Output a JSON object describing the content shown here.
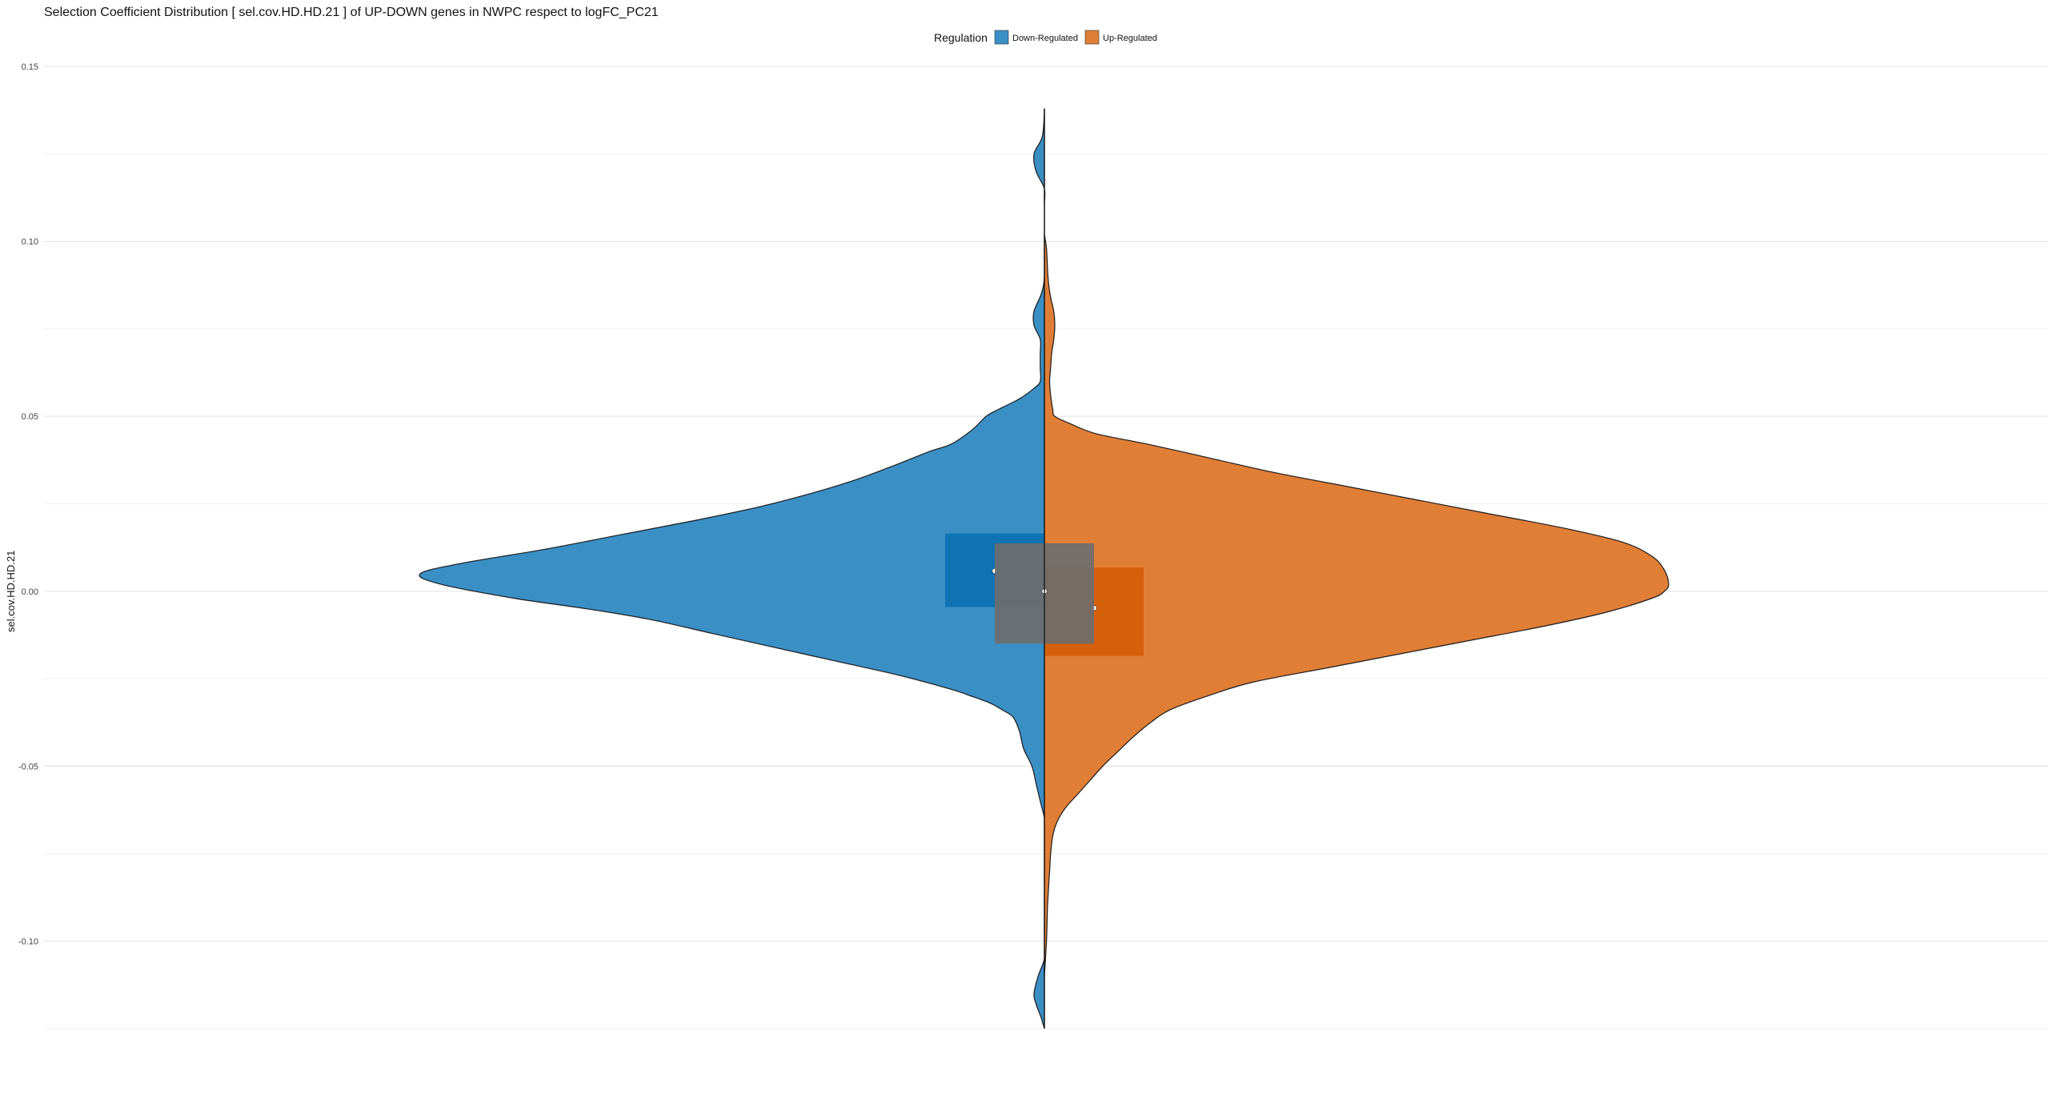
{
  "chart_data": {
    "type": "split-violin",
    "title": "Selection Coefficient Distribution [ sel.cov.HD.HD.21 ] of UP-DOWN genes in  NWPC  respect to  logFC_PC21",
    "xlabel": "",
    "ylabel": "sel.cov.HD.HD.21",
    "ylim": [
      -0.125,
      0.152
    ],
    "yticks": [
      0.15,
      0.1,
      0.05,
      0.0,
      -0.05,
      -0.1
    ],
    "ytick_labels": [
      "0.15",
      "0.10",
      "0.05",
      "0.00",
      "-0.05",
      "-0.10"
    ],
    "grid": true,
    "legend": {
      "title": "Regulation",
      "position": "top",
      "entries": [
        {
          "name": "Down-Regulated",
          "color": "#3a8fc5"
        },
        {
          "name": "Up-Regulated",
          "color": "#e07e36"
        }
      ]
    },
    "series": [
      {
        "name": "Down-Regulated",
        "side": "left",
        "color": "#3a8fc5",
        "density": {
          "y": [
            0.138,
            0.13,
            0.125,
            0.12,
            0.115,
            0.11,
            0.1,
            0.09,
            0.085,
            0.08,
            0.076,
            0.072,
            0.068,
            0.064,
            0.06,
            0.058,
            0.055,
            0.052,
            0.05,
            0.046,
            0.042,
            0.04,
            0.036,
            0.032,
            0.028,
            0.024,
            0.02,
            0.016,
            0.012,
            0.008,
            0.005,
            0.002,
            -0.002,
            -0.005,
            -0.008,
            -0.012,
            -0.016,
            -0.02,
            -0.024,
            -0.028,
            -0.03,
            -0.032,
            -0.034,
            -0.036,
            -0.04,
            -0.045,
            -0.05,
            -0.055,
            -0.06,
            -0.065,
            -0.07,
            -0.08,
            -0.09,
            -0.1,
            -0.105,
            -0.11,
            -0.115,
            -0.118,
            -0.122,
            -0.125
          ],
          "w": [
            0.0,
            0.01,
            0.05,
            0.04,
            0.0,
            0.0,
            0.0,
            0.0,
            0.015,
            0.05,
            0.05,
            0.02,
            0.02,
            0.02,
            0.02,
            0.05,
            0.12,
            0.22,
            0.28,
            0.35,
            0.45,
            0.55,
            0.72,
            0.9,
            1.12,
            1.38,
            1.7,
            2.05,
            2.4,
            2.8,
            3.0,
            2.9,
            2.55,
            2.2,
            1.9,
            1.6,
            1.3,
            1.0,
            0.7,
            0.45,
            0.35,
            0.26,
            0.2,
            0.15,
            0.12,
            0.1,
            0.06,
            0.04,
            0.02,
            0.0,
            0.0,
            0.0,
            0.0,
            0.0,
            0.0,
            0.03,
            0.05,
            0.04,
            0.015,
            0.0
          ]
        },
        "box": {
          "q1": -0.0045,
          "q3": 0.0165,
          "median": 0.0058
        }
      },
      {
        "name": "Up-Regulated",
        "side": "right",
        "color": "#e07e36",
        "density": {
          "y": [
            0.102,
            0.098,
            0.092,
            0.088,
            0.084,
            0.08,
            0.076,
            0.072,
            0.068,
            0.064,
            0.06,
            0.056,
            0.052,
            0.05,
            0.048,
            0.045,
            0.042,
            0.038,
            0.034,
            0.03,
            0.026,
            0.022,
            0.018,
            0.014,
            0.01,
            0.006,
            0.002,
            0.0,
            -0.002,
            -0.006,
            -0.01,
            -0.014,
            -0.018,
            -0.022,
            -0.026,
            -0.03,
            -0.034,
            -0.038,
            -0.042,
            -0.046,
            -0.05,
            -0.054,
            -0.058,
            -0.062,
            -0.066,
            -0.07,
            -0.075,
            -0.08,
            -0.09,
            -0.1,
            -0.11
          ],
          "w": [
            0.0,
            0.01,
            0.015,
            0.02,
            0.03,
            0.045,
            0.05,
            0.045,
            0.035,
            0.03,
            0.025,
            0.03,
            0.04,
            0.05,
            0.12,
            0.25,
            0.5,
            0.8,
            1.1,
            1.45,
            1.8,
            2.15,
            2.5,
            2.78,
            2.92,
            2.98,
            3.0,
            2.98,
            2.92,
            2.7,
            2.4,
            2.05,
            1.7,
            1.35,
            1.0,
            0.78,
            0.6,
            0.5,
            0.42,
            0.35,
            0.28,
            0.22,
            0.16,
            0.1,
            0.06,
            0.04,
            0.03,
            0.025,
            0.015,
            0.01,
            0.0
          ]
        },
        "box": {
          "q1": -0.0185,
          "q3": 0.0068,
          "median": -0.0048
        }
      }
    ],
    "overall_box": {
      "q1": -0.015,
      "q3": 0.0137,
      "median": 0.0,
      "color": "#6e6e6e"
    }
  }
}
